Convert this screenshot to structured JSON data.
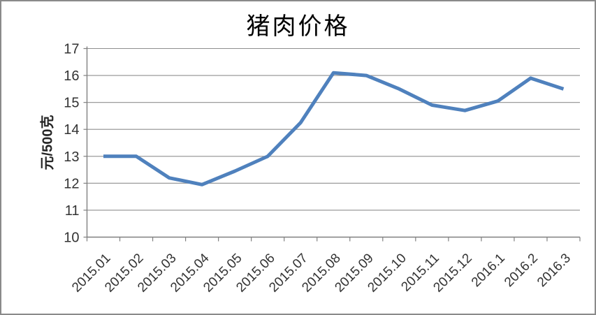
{
  "chart_data": {
    "type": "line",
    "title": "猪肉价格",
    "ylabel": "元/500克",
    "xlabel": "",
    "categories": [
      "2015.01",
      "2015.02",
      "2015.03",
      "2015.04",
      "2015.05",
      "2015.06",
      "2015.07",
      "2015.08",
      "2015.09",
      "2015.10",
      "2015.11",
      "2015.12",
      "2016.1",
      "2016.2",
      "2016.3"
    ],
    "values": [
      13.0,
      13.0,
      12.2,
      11.95,
      12.45,
      13.0,
      14.25,
      16.1,
      16.0,
      15.5,
      14.9,
      14.7,
      15.05,
      15.9,
      15.5
    ],
    "ylim": [
      10,
      17
    ],
    "yticks": [
      10,
      11,
      12,
      13,
      14,
      15,
      16,
      17
    ],
    "grid": true,
    "legend_position": "none",
    "line_color": "#4F81BD",
    "grid_color": "#8f8f8f",
    "axis_color": "#808080",
    "tick_label_color": "#333333",
    "border_color": "#8a8a8a",
    "background_color": "#ffffff"
  }
}
